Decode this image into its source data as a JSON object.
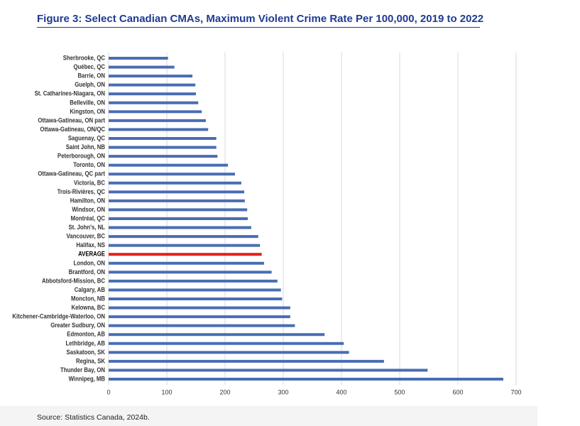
{
  "chart_data": {
    "type": "bar",
    "orientation": "horizontal",
    "title": "Figure 3: Select Canadian CMAs, Maximum Violent Crime Rate Per 100,000, 2019 to 2022",
    "source": "Source: Statistics Canada, 2024b.",
    "categories": [
      "Sherbrooke, QC",
      "Québec, QC",
      "Barrie, ON",
      "Guelph, ON",
      "St. Catharines-Niagara, ON",
      "Belleville, ON",
      "Kingston, ON",
      "Ottawa-Gatineau, ON part",
      "Ottawa-Gatineau, ON/QC",
      "Saguenay, QC",
      "Saint John, NB",
      "Peterborough, ON",
      "Toronto, ON",
      "Ottawa-Gatineau, QC part",
      "Victoria, BC",
      "Trois-Rivières, QC",
      "Hamilton, ON",
      "Windsor, ON",
      "Montréal, QC",
      "St. John's, NL",
      "Vancouver, BC",
      "Halifax, NS",
      "AVERAGE",
      "London, ON",
      "Brantford, ON",
      "Abbotsford-Mission, BC",
      "Calgary, AB",
      "Moncton, NB",
      "Kelowna, BC",
      "Kitchener-Cambridge-Waterloo, ON",
      "Greater Sudbury, ON",
      "Edmonton, AB",
      "Lethbridge, AB",
      "Saskatoon, SK",
      "Regina, SK",
      "Thunder Bay, ON",
      "Winnipeg, MB"
    ],
    "values": [
      102,
      113,
      144,
      149,
      150,
      154,
      160,
      167,
      171,
      185,
      185,
      187,
      205,
      217,
      228,
      233,
      234,
      238,
      239,
      245,
      257,
      260,
      263,
      267,
      280,
      290,
      296,
      298,
      312,
      312,
      320,
      371,
      404,
      413,
      473,
      548,
      678
    ],
    "color": "#4a6db3",
    "colors": [
      "#4a6db3",
      "#4a6db3",
      "#4a6db3",
      "#4a6db3",
      "#4a6db3",
      "#4a6db3",
      "#4a6db3",
      "#4a6db3",
      "#4a6db3",
      "#4a6db3",
      "#4a6db3",
      "#4a6db3",
      "#4a6db3",
      "#4a6db3",
      "#4a6db3",
      "#4a6db3",
      "#4a6db3",
      "#4a6db3",
      "#4a6db3",
      "#4a6db3",
      "#4a6db3",
      "#4a6db3",
      "#e3201b",
      "#4a6db3",
      "#4a6db3",
      "#4a6db3",
      "#4a6db3",
      "#4a6db3",
      "#4a6db3",
      "#4a6db3",
      "#4a6db3",
      "#4a6db3",
      "#4a6db3",
      "#4a6db3",
      "#4a6db3",
      "#4a6db3",
      "#4a6db3"
    ],
    "xlim": [
      0,
      700
    ],
    "xticks": [
      0,
      100,
      200,
      300,
      400,
      500,
      600,
      700
    ],
    "grid": true
  }
}
